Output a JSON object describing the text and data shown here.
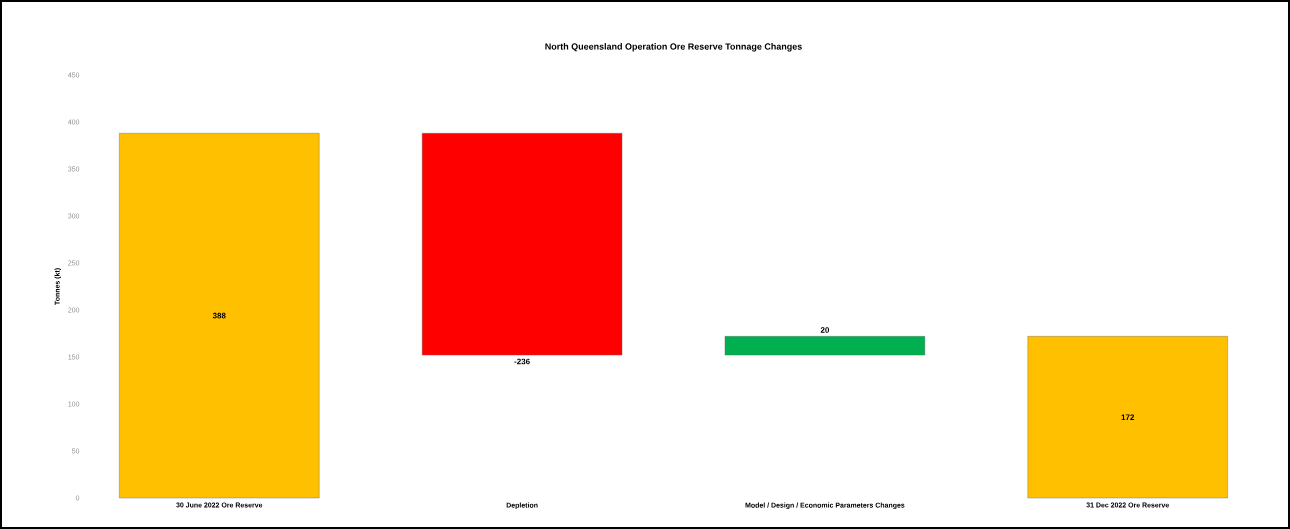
{
  "chart_data": {
    "type": "bar",
    "title": "North Queensland Operation Ore Reserve Tonnage Changes",
    "ylabel": "Tonnes (kt)",
    "categories": [
      "30 June 2022 Ore Reserve",
      "Depletion",
      "Model / Design / Economic Parameters Changes",
      "31 Dec 2022 Ore Reserve"
    ],
    "values": [
      388,
      -236,
      20,
      172
    ],
    "base": [
      0,
      388,
      152,
      0
    ],
    "colors": [
      "#ffc000",
      "#ff0000",
      "#00b050",
      "#ffc000"
    ],
    "ylim": [
      0,
      450
    ],
    "yticks": [
      0,
      50,
      100,
      150,
      200,
      250,
      300,
      350,
      400,
      450
    ],
    "data_labels": true
  }
}
